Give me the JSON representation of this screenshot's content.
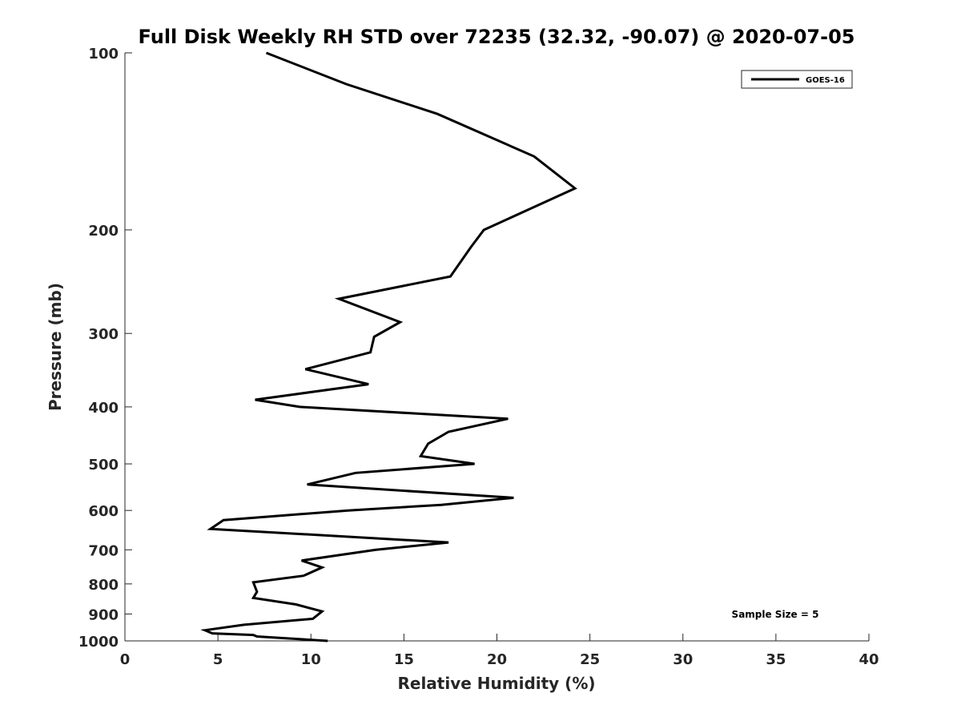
{
  "chart_data": {
    "type": "line",
    "title": "Full Disk Weekly RH STD over 72235 (32.32, -90.07) @ 2020-07-05",
    "xlabel": "Relative Humidity (%)",
    "ylabel": "Pressure (mb)",
    "xlim": [
      0,
      40
    ],
    "ylim": [
      100,
      1000
    ],
    "yscale": "log",
    "y_reversed": true,
    "x_ticks": [
      0,
      5,
      10,
      15,
      20,
      25,
      30,
      35,
      40
    ],
    "x_tick_labels": [
      "0",
      "5",
      "10",
      "15",
      "20",
      "25",
      "30",
      "35",
      "40"
    ],
    "y_ticks": [
      100,
      200,
      300,
      400,
      500,
      600,
      700,
      800,
      900,
      1000
    ],
    "y_tick_labels": [
      "100",
      "200",
      "300",
      "400",
      "500",
      "600",
      "700",
      "800",
      "900",
      "1000"
    ],
    "legend": {
      "entries": [
        "GOES-16"
      ],
      "location": "top-right"
    },
    "annotation": "Sample Size = 5",
    "series": [
      {
        "name": "GOES-16",
        "color": "#000000",
        "x": [
          7.6,
          11.9,
          16.8,
          22.0,
          24.2,
          19.3,
          18.6,
          17.5,
          11.5,
          14.8,
          13.4,
          13.2,
          9.7,
          13.1,
          7.0,
          9.4,
          20.6,
          17.4,
          16.3,
          15.9,
          18.8,
          12.4,
          9.8,
          20.9,
          17.0,
          12.0,
          5.3,
          4.6,
          17.4,
          13.5,
          9.5,
          10.6,
          9.6,
          6.9,
          7.1,
          6.9,
          9.2,
          10.6,
          10.1,
          6.4,
          4.3,
          4.7,
          6.9,
          7.1,
          10.9
        ],
        "y": [
          100,
          113,
          127,
          150,
          170,
          200,
          214,
          240,
          262,
          287,
          304,
          323,
          345,
          366,
          389,
          400,
          419,
          441,
          462,
          485,
          500,
          518,
          542,
          571,
          587,
          600,
          623,
          645,
          680,
          700,
          730,
          750,
          775,
          795,
          825,
          845,
          867,
          891,
          917,
          939,
          959,
          971,
          977,
          983,
          1000
        ]
      }
    ]
  }
}
